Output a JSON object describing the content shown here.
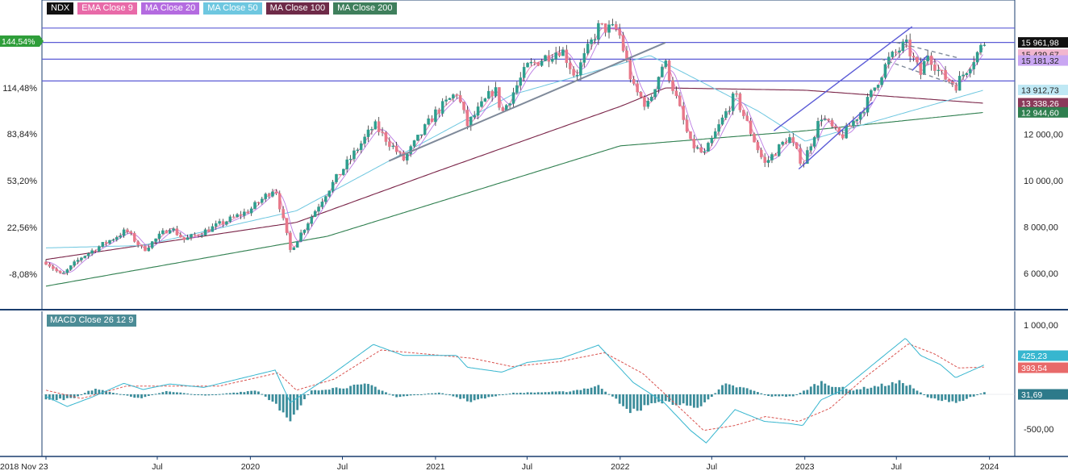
{
  "legend": {
    "symbol": "NDX",
    "items": [
      {
        "label": "EMA Close 9",
        "color": "#e86aa8"
      },
      {
        "label": "MA Close 20",
        "color": "#b46be0"
      },
      {
        "label": "MA Close 50",
        "color": "#6ec7e0"
      },
      {
        "label": "MA Close 100",
        "color": "#6e2a48"
      },
      {
        "label": "MA Close 200",
        "color": "#3f7f5c"
      }
    ]
  },
  "macd_label": "MACD Close 26 12 9",
  "colors": {
    "up": "#2e9e8e",
    "down": "#e8788a",
    "ema9": "#e86aa8",
    "ma20": "#b46be0",
    "ma50": "#6ec7e0",
    "ma100": "#7a2448",
    "ma200": "#2f7f4f",
    "hline": "#5b5bd6",
    "trend": "#5b5bd6",
    "trendgray": "#7f8a9a",
    "hist": "#3b8c9a",
    "macd": "#37b6cf",
    "signal": "#d9534f",
    "axis": "#1a3d6e"
  },
  "chart_data": [
    {
      "type": "candlestick",
      "name": "NDX",
      "x_start": "2018-11-23",
      "x_end": "2023-12-22",
      "x_ticks": [
        "2018 Nov 23",
        "Jul",
        "2020",
        "Jul",
        "2021",
        "Jul",
        "2022",
        "Jul",
        "2023",
        "Jul",
        "2024"
      ],
      "right_axis": {
        "ticks": [
          "6 000,00",
          "8 000,00",
          "10 000,00",
          "12 000,00"
        ],
        "ylim": [
          4600,
          16800
        ]
      },
      "left_axis": {
        "ticks": [
          "144,54%",
          "114,48%",
          "83,84%",
          "53,20%",
          "22,56%",
          "-8,08%"
        ]
      },
      "price_tags": [
        {
          "label": "15 961,98",
          "value": 15961.98,
          "bg": "#111111",
          "fg": "#ffffff"
        },
        {
          "label": "15 439,67",
          "value": 15439.67,
          "bg": "#f2b6cf",
          "fg": "#222222"
        },
        {
          "label": "15 181,32",
          "value": 15181.32,
          "bg": "#c9a6f2",
          "fg": "#222222"
        },
        {
          "label": "13 912,73",
          "value": 13912.73,
          "bg": "#bfe8f4",
          "fg": "#222222"
        },
        {
          "label": "13 338,26",
          "value": 13338.26,
          "bg": "#8a3a5a",
          "fg": "#ffffff"
        },
        {
          "label": "12 944,60",
          "value": 12944.6,
          "bg": "#2f7f4f",
          "fg": "#ffffff"
        }
      ],
      "current_pct_tag": "144,54%",
      "horizontal_levels": [
        16580,
        15960,
        15240,
        14300
      ],
      "close_path": [
        [
          "2018-11-23",
          6500
        ],
        [
          "2018-12-24",
          5900
        ],
        [
          "2019-02-01",
          6700
        ],
        [
          "2019-05-01",
          7850
        ],
        [
          "2019-06-03",
          7000
        ],
        [
          "2019-07-26",
          8000
        ],
        [
          "2019-08-23",
          7450
        ],
        [
          "2019-10-01",
          7800
        ],
        [
          "2019-12-31",
          8730
        ],
        [
          "2020-02-19",
          9720
        ],
        [
          "2020-03-20",
          6990
        ],
        [
          "2020-06-01",
          9550
        ],
        [
          "2020-09-02",
          12400
        ],
        [
          "2020-10-30",
          10900
        ],
        [
          "2020-12-31",
          12900
        ],
        [
          "2021-02-12",
          13800
        ],
        [
          "2021-03-05",
          12400
        ],
        [
          "2021-04-28",
          14000
        ],
        [
          "2021-05-12",
          12900
        ],
        [
          "2021-07-01",
          14900
        ],
        [
          "2021-09-07",
          15700
        ],
        [
          "2021-10-04",
          14500
        ],
        [
          "2021-11-19",
          16600
        ],
        [
          "2021-12-28",
          16500
        ],
        [
          "2022-01-27",
          14000
        ],
        [
          "2022-02-24",
          13200
        ],
        [
          "2022-03-29",
          15200
        ],
        [
          "2022-05-20",
          11600
        ],
        [
          "2022-06-16",
          11100
        ],
        [
          "2022-08-16",
          13700
        ],
        [
          "2022-10-13",
          10700
        ],
        [
          "2022-11-30",
          11900
        ],
        [
          "2022-12-28",
          10700
        ],
        [
          "2023-02-02",
          12800
        ],
        [
          "2023-03-13",
          11850
        ],
        [
          "2023-05-01",
          13250
        ],
        [
          "2023-06-15",
          15200
        ],
        [
          "2023-07-19",
          15900
        ],
        [
          "2023-08-18",
          14600
        ],
        [
          "2023-09-01",
          15500
        ],
        [
          "2023-09-26",
          14600
        ],
        [
          "2023-10-26",
          14100
        ],
        [
          "2023-12-22",
          15961.98
        ]
      ],
      "ma200_path": [
        [
          "2018-11-23",
          5450
        ],
        [
          "2020-06-01",
          7600
        ],
        [
          "2022-01-01",
          11500
        ],
        [
          "2023-01-02",
          12150
        ],
        [
          "2023-12-22",
          12944.6
        ]
      ],
      "ma100_path": [
        [
          "2018-11-23",
          6600
        ],
        [
          "2020-04-01",
          8200
        ],
        [
          "2021-01-04",
          10400
        ],
        [
          "2022-01-01",
          13200
        ],
        [
          "2022-04-01",
          14000
        ],
        [
          "2023-01-02",
          13900
        ],
        [
          "2023-12-22",
          13338.26
        ]
      ],
      "ma50_path": [
        [
          "2018-11-23",
          7100
        ],
        [
          "2019-06-01",
          7200
        ],
        [
          "2020-04-01",
          8700
        ],
        [
          "2021-06-01",
          13700
        ],
        [
          "2022-03-01",
          15400
        ],
        [
          "2022-10-01",
          13000
        ],
        [
          "2023-01-02",
          11700
        ],
        [
          "2023-12-22",
          13912.73
        ]
      ],
      "trendlines": [
        {
          "color_key": "trendgray",
          "dashed": false,
          "from": [
            "2020-10-01",
            10850
          ],
          "to": [
            "2022-03-31",
            15950
          ]
        },
        {
          "color_key": "trend",
          "dashed": false,
          "from": [
            "2022-12-20",
            10500
          ],
          "to": [
            "2023-05-15",
            13380
          ]
        },
        {
          "color_key": "trend",
          "dashed": false,
          "from": [
            "2022-11-01",
            12150
          ],
          "to": [
            "2023-08-01",
            16640
          ]
        },
        {
          "color_key": "trend",
          "dashed": false,
          "from": [
            "2023-08-01",
            14750
          ],
          "to": [
            "2023-08-31",
            15390
          ]
        },
        {
          "color_key": "trendgray",
          "dashed": true,
          "from": [
            "2023-06-01",
            15250
          ],
          "to": [
            "2023-10-30",
            14100
          ]
        },
        {
          "color_key": "trendgray",
          "dashed": true,
          "from": [
            "2023-07-01",
            15960
          ],
          "to": [
            "2023-10-30",
            15300
          ]
        }
      ]
    },
    {
      "type": "macd",
      "name": "MACD Close 26 12 9",
      "y_ticks": [
        "1 000,00",
        "-500,00"
      ],
      "ylim": [
        -700,
        1100
      ],
      "tags": [
        {
          "label": "425,23",
          "value": 425.23,
          "bg": "#37b6cf"
        },
        {
          "label": "393,54",
          "value": 393.54,
          "bg": "#e86a6a"
        },
        {
          "label": "31,69",
          "value": 31.69,
          "bg": "#2d7a8a"
        }
      ],
      "macd_path": [
        [
          "2018-11-23",
          -30
        ],
        [
          "2019-01-04",
          -175
        ],
        [
          "2019-02-22",
          -40
        ],
        [
          "2019-04-26",
          160
        ],
        [
          "2019-06-03",
          70
        ],
        [
          "2019-07-26",
          150
        ],
        [
          "2019-10-01",
          100
        ],
        [
          "2020-02-19",
          350
        ],
        [
          "2020-03-20",
          -120
        ],
        [
          "2020-06-01",
          240
        ],
        [
          "2020-08-31",
          720
        ],
        [
          "2020-10-30",
          560
        ],
        [
          "2021-02-12",
          560
        ],
        [
          "2021-03-05",
          390
        ],
        [
          "2021-05-12",
          320
        ],
        [
          "2021-07-01",
          460
        ],
        [
          "2021-09-07",
          520
        ],
        [
          "2021-11-19",
          710
        ],
        [
          "2022-01-27",
          170
        ],
        [
          "2022-03-29",
          -120
        ],
        [
          "2022-05-20",
          -520
        ],
        [
          "2022-06-20",
          -700
        ],
        [
          "2022-08-16",
          -220
        ],
        [
          "2022-10-13",
          -390
        ],
        [
          "2022-12-01",
          -420
        ],
        [
          "2022-12-28",
          -450
        ],
        [
          "2023-02-02",
          -80
        ],
        [
          "2023-03-13",
          50
        ],
        [
          "2023-06-15",
          610
        ],
        [
          "2023-07-19",
          810
        ],
        [
          "2023-08-18",
          560
        ],
        [
          "2023-09-26",
          430
        ],
        [
          "2023-10-26",
          240
        ],
        [
          "2023-12-22",
          425.23
        ]
      ],
      "signal_path": [
        [
          "2018-11-23",
          60
        ],
        [
          "2019-02-01",
          -60
        ],
        [
          "2019-05-01",
          120
        ],
        [
          "2019-08-15",
          120
        ],
        [
          "2019-11-01",
          120
        ],
        [
          "2020-02-25",
          310
        ],
        [
          "2020-04-01",
          60
        ],
        [
          "2020-06-15",
          220
        ],
        [
          "2020-09-15",
          640
        ],
        [
          "2020-11-15",
          600
        ],
        [
          "2021-03-15",
          520
        ],
        [
          "2021-06-01",
          400
        ],
        [
          "2021-09-01",
          470
        ],
        [
          "2021-12-01",
          600
        ],
        [
          "2022-02-15",
          300
        ],
        [
          "2022-04-15",
          -100
        ],
        [
          "2022-06-15",
          -520
        ],
        [
          "2022-08-15",
          -450
        ],
        [
          "2022-10-15",
          -320
        ],
        [
          "2022-12-20",
          -390
        ],
        [
          "2023-02-20",
          -200
        ],
        [
          "2023-05-01",
          250
        ],
        [
          "2023-07-25",
          730
        ],
        [
          "2023-09-15",
          580
        ],
        [
          "2023-11-01",
          380
        ],
        [
          "2023-12-22",
          393.54
        ]
      ],
      "hist_path": [
        [
          "2018-11-23",
          -90
        ],
        [
          "2019-01-15",
          -60
        ],
        [
          "2019-03-01",
          90
        ],
        [
          "2019-05-25",
          -60
        ],
        [
          "2019-07-20",
          50
        ],
        [
          "2019-10-01",
          -20
        ],
        [
          "2020-01-15",
          60
        ],
        [
          "2020-03-20",
          -340
        ],
        [
          "2020-05-01",
          60
        ],
        [
          "2020-08-25",
          140
        ],
        [
          "2020-10-15",
          -40
        ],
        [
          "2021-01-10",
          30
        ],
        [
          "2021-03-10",
          -100
        ],
        [
          "2021-06-01",
          20
        ],
        [
          "2021-09-20",
          40
        ],
        [
          "2021-11-20",
          120
        ],
        [
          "2022-01-25",
          -260
        ],
        [
          "2022-03-15",
          -100
        ],
        [
          "2022-06-10",
          -190
        ],
        [
          "2022-07-25",
          140
        ],
        [
          "2022-09-10",
          80
        ],
        [
          "2022-10-25",
          -30
        ],
        [
          "2022-12-10",
          -30
        ],
        [
          "2023-02-01",
          180
        ],
        [
          "2023-04-01",
          60
        ],
        [
          "2023-07-15",
          180
        ],
        [
          "2023-09-01",
          -40
        ],
        [
          "2023-10-25",
          -130
        ],
        [
          "2023-12-22",
          31.69
        ]
      ]
    }
  ]
}
